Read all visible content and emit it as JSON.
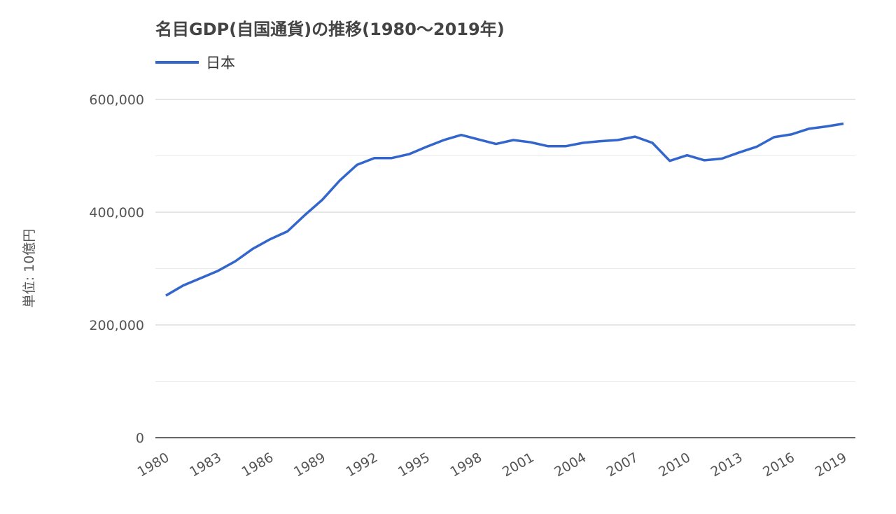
{
  "chart_data": {
    "type": "line",
    "title": "名目GDP(自国通貨)の推移(1980～2019年)",
    "ylabel": "単位: 10億円",
    "xlabel": "",
    "ylim": [
      0,
      600000
    ],
    "y_ticks": [
      "0",
      "200,000",
      "400,000",
      "600,000"
    ],
    "y_tick_values": [
      0,
      200000,
      400000,
      600000
    ],
    "minor_grid_values": [
      100000,
      300000,
      500000
    ],
    "x_ticks": [
      "1980",
      "1983",
      "1986",
      "1989",
      "1992",
      "1995",
      "1998",
      "2001",
      "2004",
      "2007",
      "2010",
      "2013",
      "2016",
      "2019"
    ],
    "grid": true,
    "legend_position": "top-left",
    "series": [
      {
        "name": "日本",
        "color": "#3366cc",
        "x": [
          1980,
          1981,
          1982,
          1983,
          1984,
          1985,
          1986,
          1987,
          1988,
          1989,
          1990,
          1991,
          1992,
          1993,
          1994,
          1995,
          1996,
          1997,
          1998,
          1999,
          2000,
          2001,
          2002,
          2003,
          2004,
          2005,
          2006,
          2007,
          2008,
          2009,
          2010,
          2011,
          2012,
          2013,
          2014,
          2015,
          2016,
          2017,
          2018,
          2019
        ],
        "values": [
          252000,
          270000,
          283000,
          296000,
          313000,
          335000,
          352000,
          366000,
          395000,
          422000,
          456000,
          484000,
          496000,
          496000,
          503000,
          516000,
          528000,
          537000,
          529000,
          521000,
          528000,
          524000,
          517000,
          517000,
          523000,
          526000,
          528000,
          534000,
          523000,
          491000,
          501000,
          492000,
          495000,
          506000,
          516000,
          533000,
          538000,
          548000,
          552000,
          557000
        ]
      }
    ]
  }
}
